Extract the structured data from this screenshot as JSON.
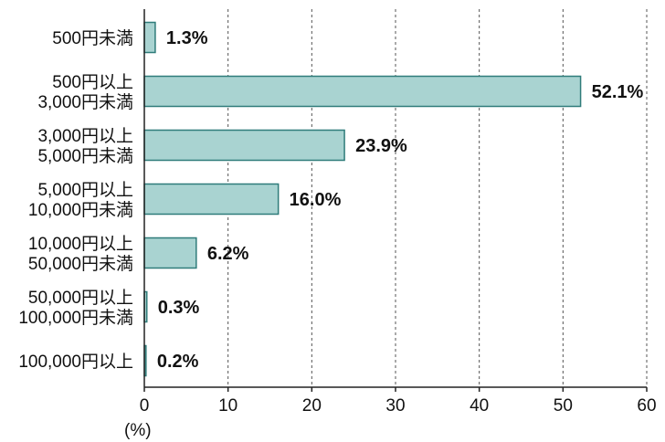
{
  "chart_data": {
    "type": "bar",
    "orientation": "horizontal",
    "categories": [
      [
        "500円未満"
      ],
      [
        "500円以上",
        "3,000円未満"
      ],
      [
        "3,000円以上",
        "5,000円未満"
      ],
      [
        "5,000円以上",
        "10,000円未満"
      ],
      [
        "10,000円以上",
        "50,000円未満"
      ],
      [
        "50,000円以上",
        "100,000円未満"
      ],
      [
        "100,000円以上"
      ]
    ],
    "values": [
      1.3,
      52.1,
      23.9,
      16.0,
      6.2,
      0.3,
      0.2
    ],
    "value_labels": [
      "1.3%",
      "52.1%",
      "23.9%",
      "16.0%",
      "6.2%",
      "0.3%",
      "0.2%"
    ],
    "title": "",
    "xlabel": "",
    "ylabel": "",
    "unit_label": "(%)",
    "xlim": [
      0,
      60
    ],
    "xticks": [
      0,
      10,
      20,
      30,
      40,
      50,
      60
    ],
    "grid": "vertical dotted",
    "legend": "none",
    "colors": {
      "bar_fill": "#a9d3d1",
      "bar_stroke": "#2f7c7a",
      "text": "#111111",
      "grid": "#555555"
    }
  }
}
